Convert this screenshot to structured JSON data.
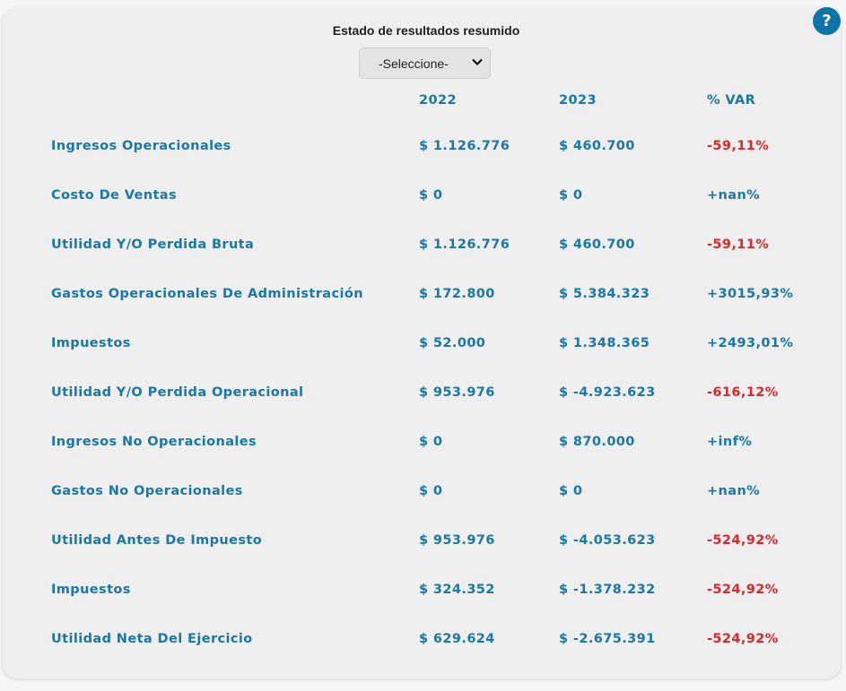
{
  "title": "Estado de resultados resumido",
  "select": {
    "value": "-Seleccione-"
  },
  "help_label": "?",
  "colors": {
    "accent": "#1978a9",
    "negative": "#e0262a"
  },
  "headers": [
    "2022",
    "2023",
    "% VAR"
  ],
  "rows": [
    {
      "label": "Ingresos Operacionales",
      "y2022": "$ 1.126.776",
      "y2023": "$ 460.700",
      "var": "-59,11%",
      "negative": true
    },
    {
      "label": "Costo De Ventas",
      "y2022": "$ 0",
      "y2023": "$ 0",
      "var": "+nan%",
      "negative": false
    },
    {
      "label": "Utilidad Y/O Perdida Bruta",
      "y2022": "$ 1.126.776",
      "y2023": "$ 460.700",
      "var": "-59,11%",
      "negative": true
    },
    {
      "label": "Gastos Operacionales De Administración",
      "y2022": "$ 172.800",
      "y2023": "$ 5.384.323",
      "var": "+3015,93%",
      "negative": false
    },
    {
      "label": "Impuestos",
      "y2022": "$ 52.000",
      "y2023": "$ 1.348.365",
      "var": "+2493,01%",
      "negative": false
    },
    {
      "label": "Utilidad Y/O Perdida Operacional",
      "y2022": "$ 953.976",
      "y2023": "$ -4.923.623",
      "var": "-616,12%",
      "negative": true
    },
    {
      "label": "Ingresos No Operacionales",
      "y2022": "$ 0",
      "y2023": "$ 870.000",
      "var": "+inf%",
      "negative": false
    },
    {
      "label": "Gastos No Operacionales",
      "y2022": "$ 0",
      "y2023": "$ 0",
      "var": "+nan%",
      "negative": false
    },
    {
      "label": "Utilidad Antes De Impuesto",
      "y2022": "$ 953.976",
      "y2023": "$ -4.053.623",
      "var": "-524,92%",
      "negative": true
    },
    {
      "label": "Impuestos",
      "y2022": "$ 324.352",
      "y2023": "$ -1.378.232",
      "var": "-524,92%",
      "negative": true
    },
    {
      "label": "Utilidad Neta Del Ejercicio",
      "y2022": "$ 629.624",
      "y2023": "$ -2.675.391",
      "var": "-524,92%",
      "negative": true
    }
  ]
}
